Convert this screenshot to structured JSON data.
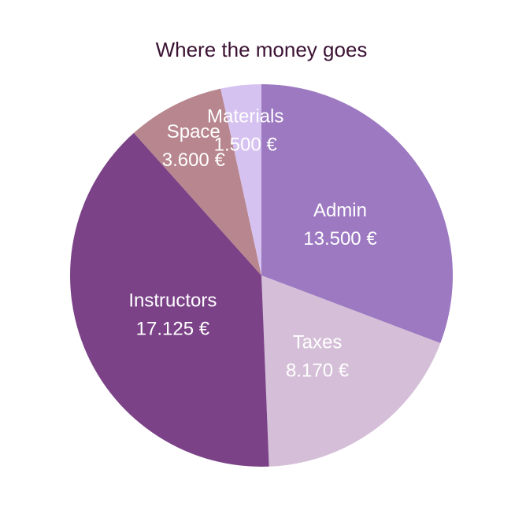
{
  "chart_data": {
    "type": "pie",
    "title": "Where the money goes",
    "slices": [
      {
        "label": "Admin",
        "value": 13500,
        "value_text": "13.500 €",
        "color": "#9c79c1"
      },
      {
        "label": "Taxes",
        "value": 8170,
        "value_text": "8.170 €",
        "color": "#d5bfd8"
      },
      {
        "label": "Instructors",
        "value": 17125,
        "value_text": "17.125 €",
        "color": "#7b4288"
      },
      {
        "label": "Space",
        "value": 3600,
        "value_text": "3.600 €",
        "color": "#b8868e"
      },
      {
        "label": "Materials",
        "value": 1500,
        "value_text": "1.500 €",
        "color": "#d6c2f0"
      }
    ],
    "start_angle": "12 o'clock",
    "direction": "clockwise",
    "legend": "none",
    "currency": "€"
  }
}
